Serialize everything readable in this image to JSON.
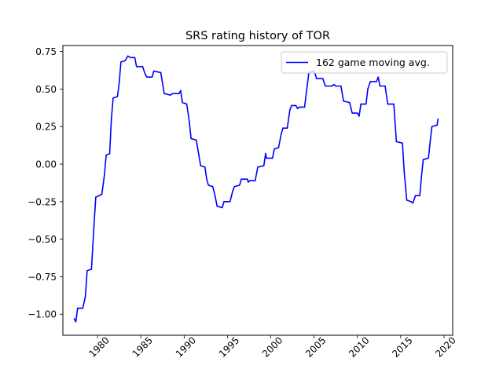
{
  "chart_data": {
    "type": "line",
    "title": "SRS rating history of TOR",
    "xlabel": "",
    "ylabel": "",
    "xlim": [
      1976.0,
      2021.0
    ],
    "ylim": [
      -1.14,
      0.79
    ],
    "x_ticks": [
      1980,
      1985,
      1990,
      1995,
      2000,
      2005,
      2010,
      2015,
      2020
    ],
    "x_tick_labels": [
      "1980",
      "1985",
      "1990",
      "1995",
      "2000",
      "2005",
      "2010",
      "2015",
      "2020"
    ],
    "y_ticks": [
      -1.0,
      -0.75,
      -0.5,
      -0.25,
      0.0,
      0.25,
      0.5,
      0.75
    ],
    "y_tick_labels": [
      "−1.00",
      "−0.75",
      "−0.50",
      "−0.25",
      "0.00",
      "0.25",
      "0.50",
      "0.75"
    ],
    "grid": false,
    "legend_position": "upper right",
    "series": [
      {
        "name": "162 game moving avg.",
        "color": "#0000ff",
        "points": [
          [
            1977.3,
            -1.03
          ],
          [
            1977.5,
            -1.05
          ],
          [
            1977.7,
            -0.96
          ],
          [
            1978.3,
            -0.96
          ],
          [
            1978.6,
            -0.88
          ],
          [
            1978.8,
            -0.71
          ],
          [
            1979.3,
            -0.7
          ],
          [
            1979.6,
            -0.4
          ],
          [
            1979.8,
            -0.22
          ],
          [
            1980.2,
            -0.21
          ],
          [
            1980.5,
            -0.2
          ],
          [
            1980.8,
            -0.07
          ],
          [
            1981.0,
            0.06
          ],
          [
            1981.4,
            0.07
          ],
          [
            1981.6,
            0.3
          ],
          [
            1981.8,
            0.44
          ],
          [
            1982.3,
            0.45
          ],
          [
            1982.5,
            0.54
          ],
          [
            1982.7,
            0.68
          ],
          [
            1983.2,
            0.69
          ],
          [
            1983.5,
            0.72
          ],
          [
            1983.8,
            0.71
          ],
          [
            1984.3,
            0.71
          ],
          [
            1984.5,
            0.65
          ],
          [
            1985.2,
            0.65
          ],
          [
            1985.5,
            0.6
          ],
          [
            1985.7,
            0.58
          ],
          [
            1986.3,
            0.58
          ],
          [
            1986.5,
            0.62
          ],
          [
            1987.3,
            0.61
          ],
          [
            1987.7,
            0.47
          ],
          [
            1988.4,
            0.46
          ],
          [
            1988.7,
            0.47
          ],
          [
            1989.4,
            0.47
          ],
          [
            1989.6,
            0.49
          ],
          [
            1989.8,
            0.41
          ],
          [
            1990.3,
            0.4
          ],
          [
            1990.6,
            0.28
          ],
          [
            1990.8,
            0.17
          ],
          [
            1991.4,
            0.16
          ],
          [
            1991.7,
            0.06
          ],
          [
            1991.9,
            -0.01
          ],
          [
            1992.4,
            -0.02
          ],
          [
            1992.6,
            -0.1
          ],
          [
            1992.8,
            -0.14
          ],
          [
            1993.3,
            -0.15
          ],
          [
            1993.6,
            -0.22
          ],
          [
            1993.8,
            -0.28
          ],
          [
            1994.4,
            -0.29
          ],
          [
            1994.6,
            -0.25
          ],
          [
            1995.3,
            -0.25
          ],
          [
            1995.6,
            -0.18
          ],
          [
            1995.8,
            -0.15
          ],
          [
            1996.4,
            -0.14
          ],
          [
            1996.6,
            -0.1
          ],
          [
            1997.3,
            -0.1
          ],
          [
            1997.4,
            -0.12
          ],
          [
            1997.6,
            -0.11
          ],
          [
            1998.2,
            -0.11
          ],
          [
            1998.5,
            -0.02
          ],
          [
            1999.2,
            -0.01
          ],
          [
            1999.4,
            0.07
          ],
          [
            1999.5,
            0.04
          ],
          [
            2000.2,
            0.04
          ],
          [
            2000.4,
            0.1
          ],
          [
            2000.9,
            0.11
          ],
          [
            2001.2,
            0.2
          ],
          [
            2001.4,
            0.24
          ],
          [
            2001.9,
            0.24
          ],
          [
            2002.2,
            0.36
          ],
          [
            2002.4,
            0.39
          ],
          [
            2002.9,
            0.39
          ],
          [
            2003.1,
            0.37
          ],
          [
            2003.3,
            0.38
          ],
          [
            2003.9,
            0.38
          ],
          [
            2004.2,
            0.52
          ],
          [
            2004.4,
            0.61
          ],
          [
            2005.0,
            0.62
          ],
          [
            2005.3,
            0.57
          ],
          [
            2006.0,
            0.57
          ],
          [
            2006.3,
            0.52
          ],
          [
            2007.0,
            0.52
          ],
          [
            2007.3,
            0.53
          ],
          [
            2007.5,
            0.52
          ],
          [
            2008.1,
            0.52
          ],
          [
            2008.4,
            0.42
          ],
          [
            2009.1,
            0.41
          ],
          [
            2009.4,
            0.34
          ],
          [
            2010.0,
            0.34
          ],
          [
            2010.2,
            0.32
          ],
          [
            2010.4,
            0.4
          ],
          [
            2011.0,
            0.4
          ],
          [
            2011.2,
            0.5
          ],
          [
            2011.5,
            0.55
          ],
          [
            2012.2,
            0.55
          ],
          [
            2012.4,
            0.58
          ],
          [
            2012.6,
            0.52
          ],
          [
            2013.2,
            0.52
          ],
          [
            2013.5,
            0.4
          ],
          [
            2014.2,
            0.4
          ],
          [
            2014.5,
            0.15
          ],
          [
            2015.2,
            0.14
          ],
          [
            2015.4,
            -0.05
          ],
          [
            2015.7,
            -0.24
          ],
          [
            2016.2,
            -0.25
          ],
          [
            2016.4,
            -0.26
          ],
          [
            2016.7,
            -0.21
          ],
          [
            2017.2,
            -0.21
          ],
          [
            2017.4,
            -0.08
          ],
          [
            2017.6,
            0.03
          ],
          [
            2018.2,
            0.04
          ],
          [
            2018.4,
            0.15
          ],
          [
            2018.6,
            0.25
          ],
          [
            2019.2,
            0.26
          ],
          [
            2019.3,
            0.3
          ]
        ]
      }
    ]
  }
}
